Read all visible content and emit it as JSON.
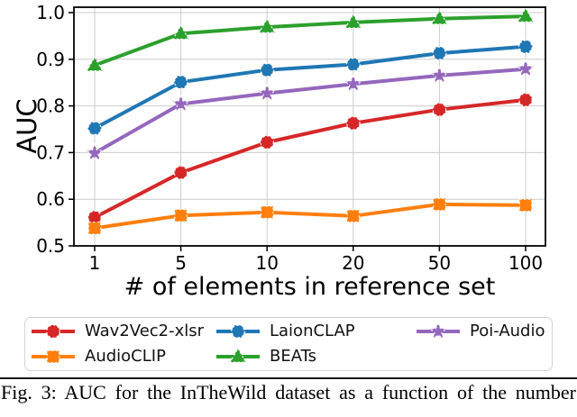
{
  "figure": {
    "caption": "Fig. 3: AUC for the InTheWild dataset as a function of the number"
  },
  "chart_data": {
    "type": "line",
    "title": "",
    "xlabel": "# of elements in reference set",
    "ylabel": "AUC",
    "categories": [
      1,
      5,
      10,
      20,
      50,
      100
    ],
    "x_tick_labels": [
      "1",
      "5",
      "10",
      "20",
      "50",
      "100"
    ],
    "y_ticks": [
      0.5,
      0.6,
      0.7,
      0.8,
      0.9,
      1.0
    ],
    "ylim": [
      0.5,
      1.012
    ],
    "x_scale": "categorical-evenly-spaced",
    "grid": true,
    "legend_position": "below-chart",
    "legend_columns": 3,
    "series": [
      {
        "name": "Wav2Vec2-xlsr",
        "color": "#d62728",
        "marker": "circle",
        "values": [
          0.561,
          0.657,
          0.722,
          0.763,
          0.792,
          0.813
        ]
      },
      {
        "name": "AudioCLIP",
        "color": "#ff7f0e",
        "marker": "square",
        "values": [
          0.538,
          0.565,
          0.572,
          0.564,
          0.589,
          0.587
        ]
      },
      {
        "name": "LaionCLAP",
        "color": "#1f77b4",
        "marker": "hexagon",
        "values": [
          0.752,
          0.851,
          0.877,
          0.889,
          0.913,
          0.927
        ]
      },
      {
        "name": "BEATs",
        "color": "#2ca02c",
        "marker": "triangle",
        "values": [
          0.887,
          0.955,
          0.969,
          0.979,
          0.987,
          0.992
        ]
      },
      {
        "name": "Poi-Audio",
        "color": "#9467bd",
        "marker": "star",
        "values": [
          0.699,
          0.804,
          0.827,
          0.847,
          0.865,
          0.879
        ]
      }
    ]
  }
}
